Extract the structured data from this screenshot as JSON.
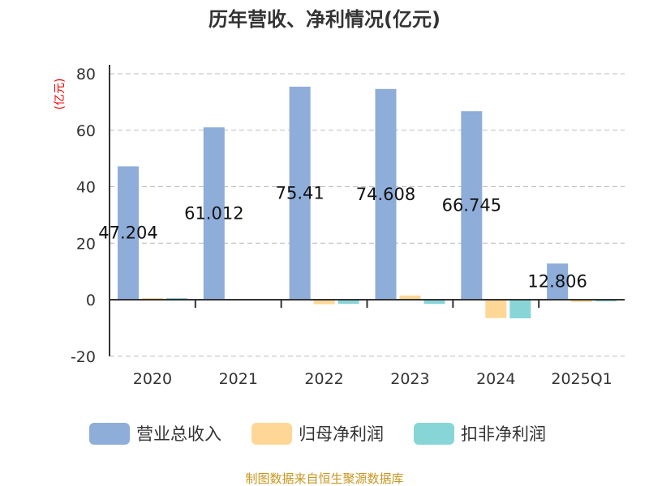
{
  "chart_data": {
    "type": "bar",
    "title": "历年营收、净利情况(亿元)",
    "ylabel": "(亿元)",
    "ylim": [
      -20,
      80
    ],
    "yticks": [
      -20,
      0,
      20,
      40,
      60,
      80
    ],
    "grid": true,
    "legend_placement": "bottom",
    "categories": [
      "2020",
      "2021",
      "2022",
      "2023",
      "2024",
      "2025Q1"
    ],
    "series": [
      {
        "name": "营业总收入",
        "color": "#8eadd9",
        "values": [
          47.204,
          61.012,
          75.41,
          74.608,
          66.745,
          12.806
        ],
        "labels": [
          "47.204",
          "61.012",
          "75.41",
          "74.608",
          "66.745",
          "12.806"
        ]
      },
      {
        "name": "归母净利润",
        "color": "#fed797",
        "values": [
          0.6,
          -0.2,
          -1.6,
          1.5,
          -6.5,
          -0.8
        ]
      },
      {
        "name": "扣非净利润",
        "color": "#88d5d8",
        "values": [
          0.6,
          -0.3,
          -1.5,
          -1.5,
          -6.6,
          -0.6
        ]
      }
    ]
  },
  "footer": "制图数据来自恒生聚源数据库"
}
